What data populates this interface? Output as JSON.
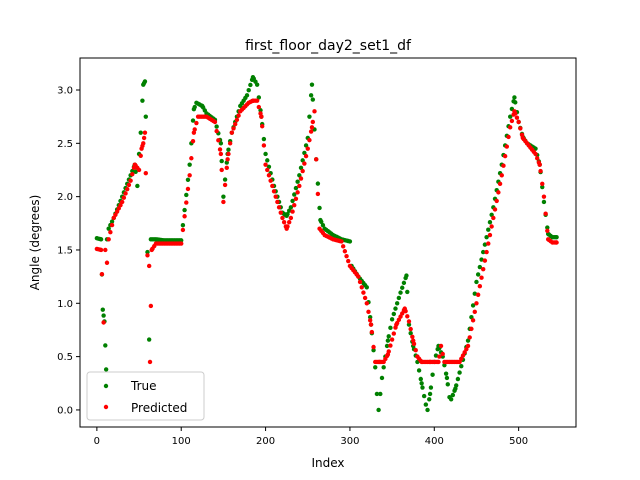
{
  "chart_data": {
    "type": "scatter",
    "title": "first_floor_day2_set1_df",
    "xlabel": "Index",
    "ylabel": "Angle (degrees)",
    "xlim": [
      -20,
      568
    ],
    "ylim": [
      -0.16,
      3.3
    ],
    "xticks": [
      0,
      100,
      200,
      300,
      400,
      500
    ],
    "yticks": [
      0.0,
      0.5,
      1.0,
      1.5,
      2.0,
      2.5,
      3.0
    ],
    "grid": false,
    "legend": "lower-left",
    "series": [
      {
        "name": "True",
        "color": "#008000",
        "keypoints": [
          [
            0,
            1.61
          ],
          [
            5,
            1.6
          ],
          [
            7,
            0.94
          ],
          [
            9,
            0.83
          ],
          [
            11,
            0.38
          ],
          [
            12,
            1.6
          ],
          [
            14,
            1.7
          ],
          [
            20,
            1.8
          ],
          [
            30,
            2.0
          ],
          [
            40,
            2.2
          ],
          [
            45,
            2.3
          ],
          [
            48,
            2.1
          ],
          [
            50,
            2.4
          ],
          [
            52,
            2.6
          ],
          [
            55,
            3.05
          ],
          [
            57,
            3.08
          ],
          [
            58,
            2.75
          ],
          [
            60,
            1.48
          ],
          [
            62,
            0.66
          ],
          [
            64,
            1.6
          ],
          [
            70,
            1.6
          ],
          [
            80,
            1.59
          ],
          [
            90,
            1.59
          ],
          [
            100,
            1.59
          ],
          [
            110,
            2.3
          ],
          [
            112,
            2.5
          ],
          [
            115,
            2.82
          ],
          [
            118,
            2.88
          ],
          [
            125,
            2.85
          ],
          [
            130,
            2.78
          ],
          [
            140,
            2.72
          ],
          [
            147,
            2.5
          ],
          [
            150,
            2.0
          ],
          [
            155,
            2.4
          ],
          [
            160,
            2.6
          ],
          [
            170,
            2.85
          ],
          [
            178,
            2.95
          ],
          [
            185,
            3.12
          ],
          [
            190,
            3.05
          ],
          [
            195,
            2.75
          ],
          [
            200,
            2.4
          ],
          [
            210,
            2.1
          ],
          [
            220,
            1.85
          ],
          [
            225,
            1.82
          ],
          [
            230,
            1.9
          ],
          [
            240,
            2.2
          ],
          [
            250,
            2.55
          ],
          [
            255,
            3.05
          ],
          [
            260,
            2.35
          ],
          [
            265,
            1.78
          ],
          [
            270,
            1.7
          ],
          [
            280,
            1.64
          ],
          [
            290,
            1.6
          ],
          [
            300,
            1.58
          ],
          [
            302,
            1.35
          ],
          [
            310,
            1.25
          ],
          [
            320,
            1.15
          ],
          [
            325,
            0.8
          ],
          [
            330,
            0.4
          ],
          [
            332,
            0.15
          ],
          [
            334,
            0.0
          ],
          [
            338,
            0.3
          ],
          [
            345,
            0.65
          ],
          [
            350,
            0.85
          ],
          [
            360,
            1.1
          ],
          [
            367,
            1.26
          ],
          [
            370,
            0.8
          ],
          [
            375,
            0.6
          ],
          [
            380,
            0.45
          ],
          [
            385,
            0.25
          ],
          [
            390,
            0.05
          ],
          [
            392,
            0.0
          ],
          [
            395,
            0.15
          ],
          [
            400,
            0.45
          ],
          [
            405,
            0.6
          ],
          [
            410,
            0.5
          ],
          [
            415,
            0.3
          ],
          [
            418,
            0.12
          ],
          [
            420,
            0.1
          ],
          [
            425,
            0.2
          ],
          [
            430,
            0.35
          ],
          [
            440,
            0.65
          ],
          [
            450,
            1.2
          ],
          [
            460,
            1.55
          ],
          [
            470,
            1.9
          ],
          [
            480,
            2.3
          ],
          [
            490,
            2.75
          ],
          [
            495,
            2.93
          ],
          [
            500,
            2.7
          ],
          [
            505,
            2.56
          ],
          [
            510,
            2.5
          ],
          [
            520,
            2.45
          ],
          [
            525,
            2.3
          ],
          [
            530,
            1.95
          ],
          [
            535,
            1.65
          ],
          [
            540,
            1.62
          ],
          [
            545,
            1.62
          ]
        ]
      },
      {
        "name": "Predicted",
        "color": "#ff0000",
        "keypoints": [
          [
            0,
            1.51
          ],
          [
            5,
            1.5
          ],
          [
            8,
            0.82
          ],
          [
            10,
            1.5
          ],
          [
            12,
            1.38
          ],
          [
            14,
            1.6
          ],
          [
            20,
            1.8
          ],
          [
            30,
            1.95
          ],
          [
            40,
            2.15
          ],
          [
            45,
            2.3
          ],
          [
            50,
            2.25
          ],
          [
            53,
            2.45
          ],
          [
            55,
            2.5
          ],
          [
            57,
            2.6
          ],
          [
            58,
            2.22
          ],
          [
            60,
            1.45
          ],
          [
            62,
            1.35
          ],
          [
            63,
            0.45
          ],
          [
            65,
            1.5
          ],
          [
            70,
            1.56
          ],
          [
            80,
            1.56
          ],
          [
            90,
            1.56
          ],
          [
            100,
            1.56
          ],
          [
            110,
            2.2
          ],
          [
            115,
            2.6
          ],
          [
            120,
            2.75
          ],
          [
            130,
            2.75
          ],
          [
            140,
            2.7
          ],
          [
            147,
            2.4
          ],
          [
            150,
            1.95
          ],
          [
            155,
            2.35
          ],
          [
            160,
            2.6
          ],
          [
            170,
            2.8
          ],
          [
            180,
            2.88
          ],
          [
            185,
            2.9
          ],
          [
            190,
            2.9
          ],
          [
            195,
            2.75
          ],
          [
            200,
            2.3
          ],
          [
            210,
            2.05
          ],
          [
            220,
            1.8
          ],
          [
            225,
            1.7
          ],
          [
            230,
            1.8
          ],
          [
            240,
            2.1
          ],
          [
            250,
            2.45
          ],
          [
            255,
            2.65
          ],
          [
            258,
            2.8
          ],
          [
            260,
            2.35
          ],
          [
            264,
            1.7
          ],
          [
            270,
            1.64
          ],
          [
            280,
            1.6
          ],
          [
            290,
            1.58
          ],
          [
            300,
            1.35
          ],
          [
            310,
            1.25
          ],
          [
            320,
            1.0
          ],
          [
            325,
            0.8
          ],
          [
            330,
            0.45
          ],
          [
            335,
            0.45
          ],
          [
            340,
            0.45
          ],
          [
            345,
            0.52
          ],
          [
            355,
            0.8
          ],
          [
            365,
            0.95
          ],
          [
            370,
            0.83
          ],
          [
            375,
            0.65
          ],
          [
            380,
            0.5
          ],
          [
            385,
            0.45
          ],
          [
            395,
            0.45
          ],
          [
            405,
            0.45
          ],
          [
            408,
            0.6
          ],
          [
            412,
            0.45
          ],
          [
            420,
            0.45
          ],
          [
            430,
            0.45
          ],
          [
            440,
            0.6
          ],
          [
            450,
            1.0
          ],
          [
            460,
            1.4
          ],
          [
            470,
            1.8
          ],
          [
            480,
            2.2
          ],
          [
            490,
            2.65
          ],
          [
            495,
            2.8
          ],
          [
            500,
            2.7
          ],
          [
            505,
            2.55
          ],
          [
            510,
            2.5
          ],
          [
            520,
            2.4
          ],
          [
            525,
            2.3
          ],
          [
            530,
            2.0
          ],
          [
            535,
            1.6
          ],
          [
            540,
            1.57
          ],
          [
            545,
            1.57
          ]
        ]
      }
    ]
  }
}
